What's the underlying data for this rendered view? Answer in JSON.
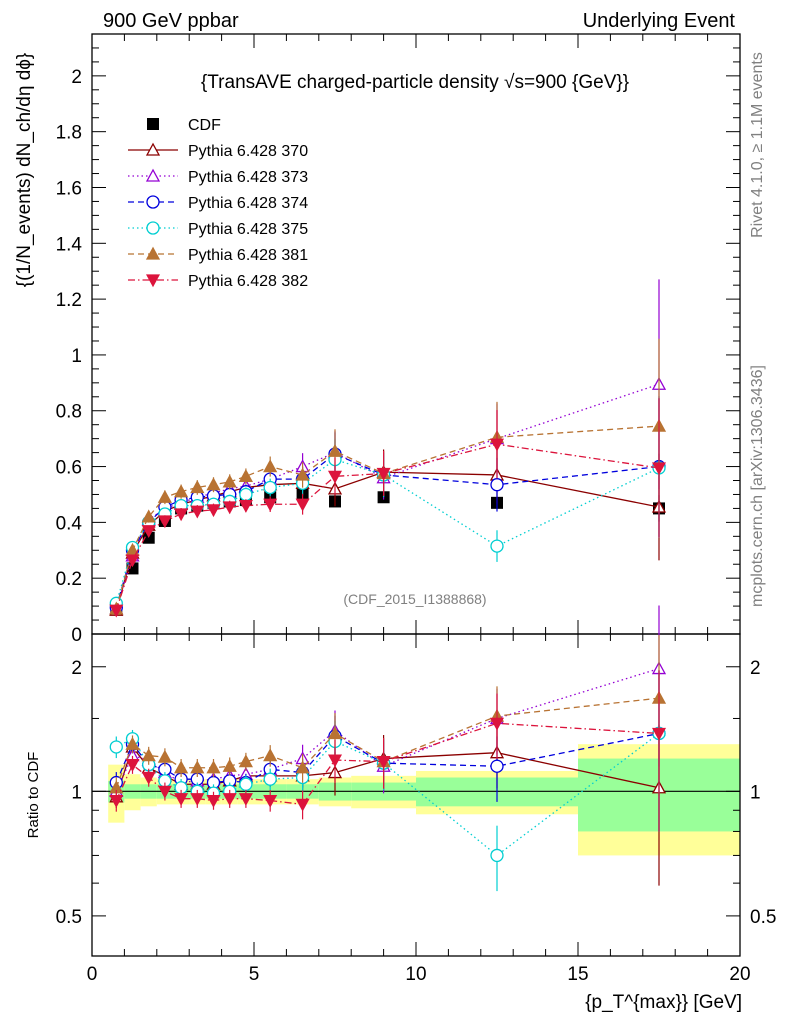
{
  "header": {
    "left": "900 GeV ppbar",
    "right": "Underlying Event"
  },
  "side_labels": {
    "rivet": "Rivet 4.1.0, ≥ 1.1M events",
    "mcplots": "mcplots.cern.ch [arXiv:1306.3436]"
  },
  "analysis_id": "(CDF_2015_I1388868)",
  "chart_data": [
    {
      "type": "scatter",
      "name": "main",
      "title": "{TransAVE charged-particle density √s=900 {GeV}}",
      "ylabel": "{(1/N_events) dN_ch/dη dϕ}",
      "xlabel": "{p_T^{max}} [GeV]",
      "xlim": [
        0,
        20
      ],
      "ylim": [
        0,
        2.15
      ],
      "y_ticks": [
        "0",
        "0.2",
        "0.4",
        "0.6",
        "0.8",
        "1",
        "1.2",
        "1.4",
        "1.6",
        "1.8",
        "2"
      ],
      "x_ticks": [
        "0",
        "5",
        "10",
        "15",
        "20"
      ],
      "x": [
        0.75,
        1.25,
        1.75,
        2.25,
        2.75,
        3.25,
        3.75,
        4.25,
        4.75,
        5.5,
        6.5,
        7.5,
        9.0,
        12.5,
        17.5
      ],
      "series": [
        {
          "name": "CDF",
          "color": "#000000",
          "marker": "square",
          "line": "none",
          "values": [
            0.09,
            0.235,
            0.345,
            0.405,
            0.45,
            0.46,
            0.47,
            0.475,
            0.48,
            0.49,
            0.5,
            0.475,
            0.49,
            0.47,
            0.45
          ]
        },
        {
          "name": "Pythia 6.428 370",
          "color": "#8b0000",
          "marker": "triangle-open",
          "line": "solid",
          "values": [
            0.085,
            0.29,
            0.39,
            0.44,
            0.465,
            0.48,
            0.495,
            0.51,
            0.525,
            0.535,
            0.54,
            0.52,
            0.58,
            0.57,
            0.455
          ]
        },
        {
          "name": "Pythia 6.428 373",
          "color": "#9400d3",
          "marker": "triangle-open",
          "line": "dotted",
          "values": [
            0.09,
            0.28,
            0.41,
            0.45,
            0.47,
            0.49,
            0.505,
            0.52,
            0.53,
            0.555,
            0.6,
            0.65,
            0.56,
            0.7,
            0.895
          ]
        },
        {
          "name": "Pythia 6.428 374",
          "color": "#0000dd",
          "marker": "circle-open",
          "line": "dashed",
          "values": [
            0.095,
            0.3,
            0.4,
            0.455,
            0.48,
            0.49,
            0.495,
            0.5,
            0.51,
            0.555,
            0.555,
            0.645,
            0.57,
            0.535,
            0.6
          ]
        },
        {
          "name": "Pythia 6.428 375",
          "color": "#00ced1",
          "marker": "circle-open",
          "line": "dotted",
          "values": [
            0.11,
            0.31,
            0.4,
            0.43,
            0.46,
            0.46,
            0.465,
            0.475,
            0.5,
            0.525,
            0.54,
            0.625,
            0.57,
            0.315,
            0.595
          ]
        },
        {
          "name": "Pythia 6.428 381",
          "color": "#b87333",
          "marker": "triangle-filled",
          "line": "dashed",
          "values": [
            0.09,
            0.3,
            0.42,
            0.49,
            0.51,
            0.525,
            0.535,
            0.545,
            0.565,
            0.6,
            0.57,
            0.655,
            0.575,
            0.705,
            0.745
          ]
        },
        {
          "name": "Pythia 6.428 382",
          "color": "#dc143c",
          "marker": "triangle-down-filled",
          "line": "dashdot",
          "values": [
            0.085,
            0.265,
            0.37,
            0.405,
            0.43,
            0.44,
            0.445,
            0.455,
            0.46,
            0.465,
            0.465,
            0.565,
            0.575,
            0.68,
            0.595
          ]
        }
      ]
    },
    {
      "type": "scatter",
      "name": "ratio",
      "ylabel": "Ratio to CDF",
      "ylim": [
        0.4,
        2.4
      ],
      "yscale": "log",
      "y_ticks": [
        "0.5",
        "1",
        "2"
      ],
      "bands_x_edges": [
        0.5,
        1.0,
        1.5,
        2.0,
        2.5,
        3.0,
        3.5,
        4.0,
        4.5,
        5.0,
        6.0,
        7.0,
        8.0,
        10.0,
        15.0,
        20.0
      ],
      "band_stat": [
        0.06,
        0.04,
        0.04,
        0.04,
        0.04,
        0.04,
        0.04,
        0.04,
        0.04,
        0.04,
        0.04,
        0.05,
        0.05,
        0.08,
        0.2
      ],
      "band_total": [
        0.16,
        0.1,
        0.08,
        0.07,
        0.07,
        0.07,
        0.07,
        0.07,
        0.07,
        0.07,
        0.07,
        0.08,
        0.09,
        0.12,
        0.3
      ],
      "series_ratios": {
        "Pythia 6.428 370": [
          0.97,
          1.28,
          1.14,
          1.09,
          1.04,
          1.04,
          1.04,
          1.06,
          1.09,
          1.09,
          1.09,
          1.11,
          1.2,
          1.24,
          1.02
        ],
        "Pythia 6.428 373": [
          1.0,
          1.22,
          1.19,
          1.11,
          1.05,
          1.06,
          1.07,
          1.09,
          1.1,
          1.13,
          1.2,
          1.4,
          1.15,
          1.5,
          1.98
        ],
        "Pythia 6.428 374": [
          1.05,
          1.3,
          1.16,
          1.13,
          1.07,
          1.07,
          1.05,
          1.06,
          1.05,
          1.13,
          1.11,
          1.36,
          1.17,
          1.15,
          1.38
        ],
        "Pythia 6.428 375": [
          1.28,
          1.34,
          1.16,
          1.06,
          1.02,
          1.0,
          0.99,
          1.0,
          1.04,
          1.07,
          1.08,
          1.32,
          1.17,
          0.7,
          1.38
        ],
        "Pythia 6.428 381": [
          1.02,
          1.3,
          1.22,
          1.21,
          1.14,
          1.14,
          1.14,
          1.15,
          1.18,
          1.22,
          1.14,
          1.38,
          1.18,
          1.52,
          1.68
        ],
        "Pythia 6.428 382": [
          0.95,
          1.16,
          1.08,
          1.0,
          0.96,
          0.96,
          0.95,
          0.96,
          0.96,
          0.95,
          0.93,
          1.19,
          1.18,
          1.46,
          1.38
        ]
      }
    }
  ]
}
